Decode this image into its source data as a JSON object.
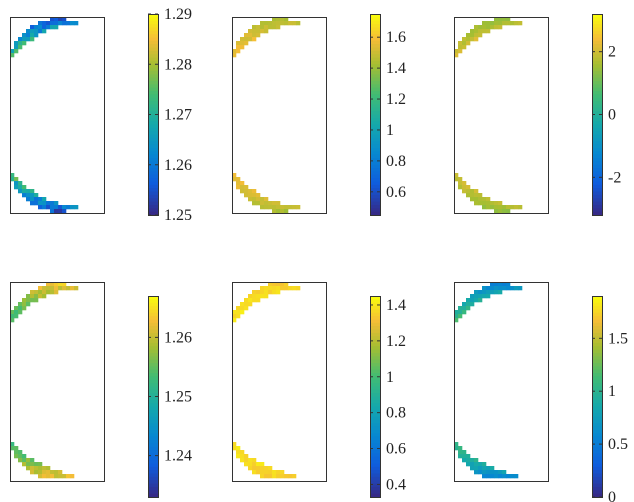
{
  "chart_data": [
    {
      "type": "heatmap",
      "panel": "row-1-col-1",
      "colormap": "parula",
      "clim": [
        1.25,
        1.29
      ],
      "colorbar_ticks": [
        1.25,
        1.26,
        1.27,
        1.28,
        1.29
      ],
      "colorbar_tick_labels": [
        "1.25",
        "1.26",
        "1.27",
        "1.28",
        "1.29"
      ],
      "pattern": "mostly green-teal with yellow lobes along the inner (concave) edge near top and bottom, dark blue corners at the crescent tips",
      "field": {
        "base": 1.272,
        "inner_edge": 0.008,
        "bumps": [
          [
            0.0,
            0.22,
            0.006
          ],
          [
            0.0,
            0.78,
            0.006
          ],
          [
            0.0,
            0.5,
            0.004
          ]
        ],
        "tips": -0.018,
        "noise": 0.004
      }
    },
    {
      "type": "heatmap",
      "panel": "row-1-col-2",
      "colormap": "parula",
      "clim": [
        0.45,
        1.75
      ],
      "colorbar_ticks": [
        0.6,
        0.8,
        1.0,
        1.2,
        1.4,
        1.6
      ],
      "colorbar_tick_labels": [
        "0.6",
        "0.8",
        "1",
        "1.2",
        "1.4",
        "1.6"
      ],
      "pattern": "nearly uniform yellow-green, slightly greener toward crescent tips",
      "field": {
        "base": 1.6,
        "inner_edge": 0.04,
        "bumps": [],
        "tips": -0.18,
        "noise": 0.03
      }
    },
    {
      "type": "heatmap",
      "panel": "row-1-col-3",
      "colormap": "parula",
      "clim": [
        -3.2,
        3.2
      ],
      "colorbar_ticks": [
        -2,
        0,
        2
      ],
      "colorbar_tick_labels": [
        "-2",
        "0",
        "2"
      ],
      "pattern": "mostly yellow-green with two dark navy streaks along the outer edge near upper and lower parts",
      "field": {
        "base": 2.0,
        "inner_edge": 0.4,
        "bumps": [
          [
            0.0,
            0.5,
            0.8
          ]
        ],
        "tips": -0.6,
        "noise": 0.15,
        "dark_streaks": [
          [
            0.35,
            0.86
          ],
          [
            0.65,
            0.86
          ]
        ]
      }
    },
    {
      "type": "heatmap",
      "panel": "row-2-col-1",
      "colormap": "parula",
      "clim": [
        1.233,
        1.267
      ],
      "colorbar_ticks": [
        1.24,
        1.25,
        1.26
      ],
      "colorbar_tick_labels": [
        "1.24",
        "1.25",
        "1.26"
      ],
      "pattern": "dark blue in the middle along the outer edge, grading to green and yellow toward both tips",
      "field": {
        "base": 1.252,
        "inner_edge": 0.0,
        "center_dip": -0.014,
        "tips": 0.012,
        "noise": 0.002
      }
    },
    {
      "type": "heatmap",
      "panel": "row-2-col-2",
      "colormap": "parula",
      "clim": [
        0.33,
        1.45
      ],
      "colorbar_ticks": [
        0.4,
        0.6,
        0.8,
        1.0,
        1.2,
        1.4
      ],
      "colorbar_tick_labels": [
        "0.4",
        "0.6",
        "0.8",
        "1",
        "1.2",
        "1.4"
      ],
      "pattern": "almost uniform bright yellow",
      "field": {
        "base": 1.4,
        "inner_edge": 0.02,
        "bumps": [],
        "tips": -0.05,
        "noise": 0.03
      }
    },
    {
      "type": "heatmap",
      "panel": "row-2-col-3",
      "colormap": "parula",
      "clim": [
        0.0,
        1.9
      ],
      "colorbar_ticks": [
        0,
        0.5,
        1,
        1.5
      ],
      "colorbar_tick_labels": [
        "0",
        "0.5",
        "1",
        "1.5"
      ],
      "pattern": "green body with blue tips at top and bottom, lighter green near the middle inner edge",
      "field": {
        "base": 1.15,
        "inner_edge": 0.15,
        "bumps": [
          [
            0.0,
            0.5,
            0.1
          ]
        ],
        "tips": -0.7,
        "noise": 0.06
      }
    }
  ]
}
